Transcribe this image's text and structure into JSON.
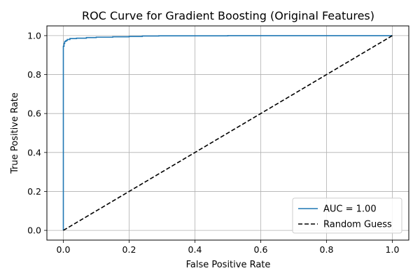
{
  "chart_data": {
    "type": "line",
    "title": "ROC Curve for Gradient Boosting (Original Features)",
    "xlabel": "False Positive Rate",
    "ylabel": "True Positive Rate",
    "xlim": [
      -0.05,
      1.05
    ],
    "ylim": [
      -0.05,
      1.05
    ],
    "x_ticks": [
      0.0,
      0.2,
      0.4,
      0.6,
      0.8,
      1.0
    ],
    "y_ticks": [
      0.0,
      0.2,
      0.4,
      0.6,
      0.8,
      1.0
    ],
    "x_tick_labels": [
      "0.0",
      "0.2",
      "0.4",
      "0.6",
      "0.8",
      "1.0"
    ],
    "y_tick_labels": [
      "0.0",
      "0.2",
      "0.4",
      "0.6",
      "0.8",
      "1.0"
    ],
    "grid": true,
    "legend_position": "bottom-right",
    "series": [
      {
        "name": "AUC = 1.00",
        "color": "#1f77b4",
        "style": "solid",
        "x": [
          0.0,
          0.0,
          0.002,
          0.002,
          0.004,
          0.004,
          0.008,
          0.008,
          0.012,
          0.012,
          0.02,
          0.02,
          0.04,
          0.04,
          0.07,
          0.07,
          0.1,
          0.1,
          0.15,
          0.15,
          0.2,
          0.2,
          0.24,
          0.24,
          0.29,
          0.29,
          0.5,
          0.5,
          1.0
        ],
        "y": [
          0.0,
          0.945,
          0.945,
          0.96,
          0.96,
          0.97,
          0.97,
          0.975,
          0.975,
          0.98,
          0.98,
          0.985,
          0.985,
          0.987,
          0.987,
          0.99,
          0.99,
          0.992,
          0.992,
          0.994,
          0.994,
          0.996,
          0.996,
          0.998,
          0.998,
          0.999,
          0.999,
          1.0,
          1.0
        ]
      },
      {
        "name": "Random Guess",
        "color": "#000000",
        "style": "dashed",
        "x": [
          0.0,
          1.0
        ],
        "y": [
          0.0,
          1.0
        ]
      }
    ]
  }
}
